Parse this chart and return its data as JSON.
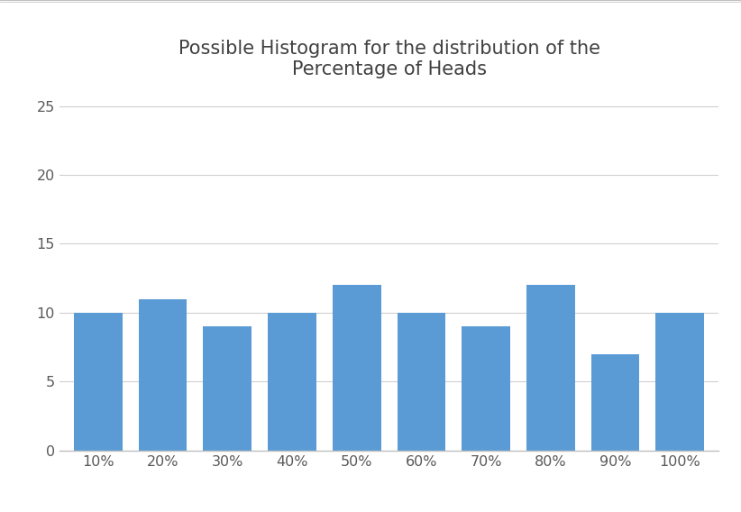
{
  "categories": [
    "10%",
    "20%",
    "30%",
    "40%",
    "50%",
    "60%",
    "70%",
    "80%",
    "90%",
    "100%"
  ],
  "values": [
    10,
    11,
    9,
    10,
    12,
    10,
    9,
    12,
    7,
    10
  ],
  "bar_color": "#5B9BD5",
  "title_line1": "Possible Histogram for the distribution of the",
  "title_line2": "Percentage of Heads",
  "title_color": "#404040",
  "title_fontsize": 15,
  "ylim": [
    0,
    26
  ],
  "yticks": [
    0,
    5,
    10,
    15,
    20,
    25
  ],
  "background_color": "#FFFFFF",
  "grid_color": "#D0D0D0",
  "tick_label_color": "#595959",
  "tick_fontsize": 11.5,
  "bar_width": 0.75,
  "top_border_color": "#BFBFBF"
}
